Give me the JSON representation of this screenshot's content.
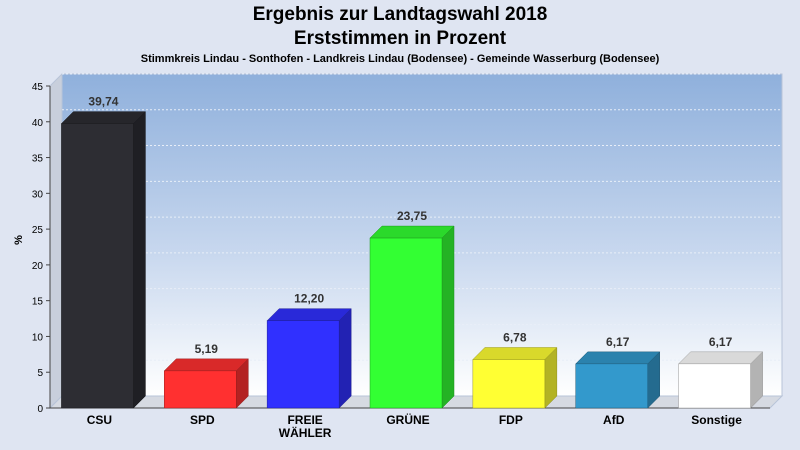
{
  "chart_data": {
    "type": "bar",
    "title": "Ergebnis zur Landtagswahl 2018",
    "subtitle": "Erststimmen in Prozent",
    "subtitle2": "Stimmkreis Lindau - Sonthofen - Landkreis Lindau (Bodensee) - Gemeinde Wasserburg (Bodensee)",
    "ylabel": "%",
    "xlabel": "",
    "ylim": [
      0,
      45
    ],
    "yticks": [
      "0",
      "5",
      "10",
      "15",
      "20",
      "25",
      "30",
      "35",
      "40",
      "45"
    ],
    "grid": true,
    "categories": [
      [
        "CSU"
      ],
      [
        "SPD"
      ],
      [
        "FREIE",
        "WÄHLER"
      ],
      [
        "GRÜNE"
      ],
      [
        "FDP"
      ],
      [
        "AfD"
      ],
      [
        "Sonstige"
      ]
    ],
    "category_names": [
      "CSU",
      "SPD",
      "FREIE WÄHLER",
      "GRÜNE",
      "FDP",
      "AfD",
      "Sonstige"
    ],
    "values": [
      39.74,
      5.19,
      12.2,
      23.75,
      6.78,
      6.17,
      6.17
    ],
    "value_labels": [
      "39,74",
      "5,19",
      "12,20",
      "23,75",
      "6,78",
      "6,17",
      "6,17"
    ],
    "colors": [
      "#2d2d33",
      "#ff3030",
      "#3030ff",
      "#33ff33",
      "#ffff33",
      "#3399cc",
      "#ffffff"
    ]
  }
}
